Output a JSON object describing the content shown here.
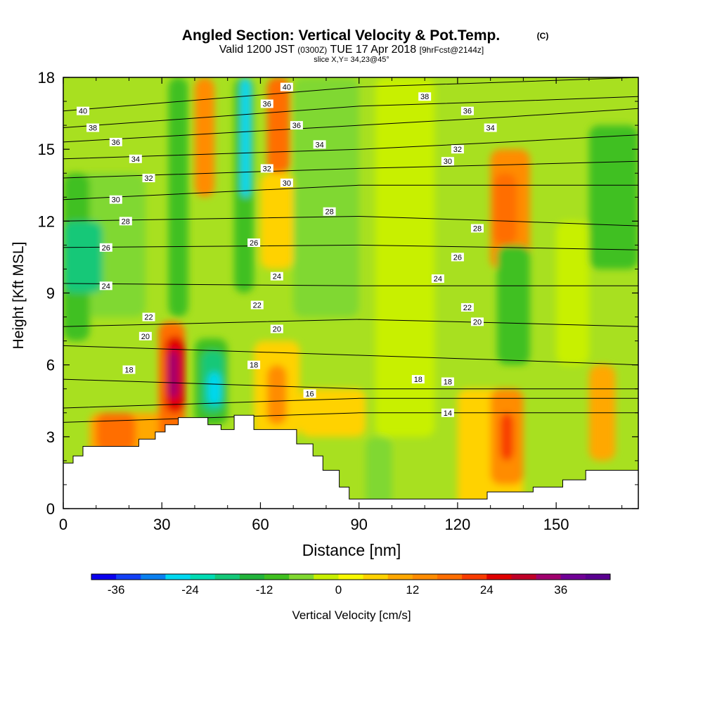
{
  "chart_data": {
    "type": "heatmap",
    "title": "Angled Section: Vertical Velocity & Pot.Temp.",
    "title_suffix": "(C)",
    "subtitle_parts": [
      "Valid 1200 JST",
      "(0300Z)",
      "TUE 17 Apr 2018",
      "[9hrFcst@2144z]"
    ],
    "subtitle2": "slice X,Y= 34,23@45°",
    "xlabel": "Distance [nm]",
    "ylabel": "Height [Kft MSL]",
    "xlim": [
      0,
      175
    ],
    "ylim": [
      0,
      18
    ],
    "x_ticks": [
      "0",
      "30",
      "60",
      "90",
      "120",
      "150"
    ],
    "y_ticks": [
      "0",
      "3",
      "6",
      "9",
      "12",
      "15",
      "18"
    ],
    "colorbar": {
      "label": "Vertical Velocity [cm/s]",
      "min": -40,
      "max": 44,
      "step": 4,
      "tick_labels": [
        "-36",
        "-24",
        "-12",
        "0",
        "12",
        "24",
        "36"
      ],
      "colors": [
        "#0a00ee",
        "#1340f5",
        "#0a80f0",
        "#00d8f0",
        "#00dcb4",
        "#14c878",
        "#22b43c",
        "#40c020",
        "#80d830",
        "#c8f000",
        "#f8f800",
        "#ffd200",
        "#ffa800",
        "#ff8c00",
        "#ff6e00",
        "#f83c00",
        "#e00000",
        "#c00028",
        "#a0006e",
        "#700096",
        "#5a0090"
      ]
    },
    "terrain": [
      [
        0,
        1.9
      ],
      [
        3,
        1.9
      ],
      [
        3,
        2.2
      ],
      [
        6,
        2.2
      ],
      [
        6,
        2.6
      ],
      [
        23,
        2.6
      ],
      [
        23,
        2.9
      ],
      [
        28,
        2.9
      ],
      [
        28,
        3.2
      ],
      [
        31,
        3.2
      ],
      [
        31,
        3.5
      ],
      [
        35,
        3.5
      ],
      [
        35,
        3.8
      ],
      [
        44,
        3.8
      ],
      [
        44,
        3.5
      ],
      [
        48,
        3.5
      ],
      [
        48,
        3.3
      ],
      [
        52,
        3.3
      ],
      [
        52,
        3.9
      ],
      [
        58,
        3.9
      ],
      [
        58,
        3.3
      ],
      [
        71,
        3.3
      ],
      [
        71,
        2.7
      ],
      [
        76,
        2.7
      ],
      [
        76,
        2.2
      ],
      [
        79,
        2.2
      ],
      [
        79,
        1.6
      ],
      [
        84,
        1.6
      ],
      [
        84,
        0.9
      ],
      [
        87,
        0.9
      ],
      [
        87,
        0.4
      ],
      [
        129,
        0.4
      ],
      [
        129,
        0.7
      ],
      [
        143,
        0.7
      ],
      [
        143,
        0.9
      ],
      [
        152,
        0.9
      ],
      [
        152,
        1.2
      ],
      [
        159,
        1.2
      ],
      [
        159,
        1.6
      ],
      [
        175,
        1.6
      ]
    ],
    "cells": [
      {
        "x": 8,
        "y": 0,
        "w": 23,
        "h": 4,
        "v": 8
      },
      {
        "x": 29,
        "y": 2.8,
        "w": 8,
        "h": 5,
        "v": 16
      },
      {
        "x": 31,
        "y": 4.0,
        "w": 6,
        "h": 3.2,
        "v": 24
      },
      {
        "x": 32,
        "y": 4.6,
        "w": 3,
        "h": 2,
        "v": 32
      },
      {
        "x": 10,
        "y": 2.4,
        "w": 12,
        "h": 1.6,
        "v": 18
      },
      {
        "x": 40,
        "y": 3.5,
        "w": 10,
        "h": 3.6,
        "v": -10
      },
      {
        "x": 42,
        "y": 4.0,
        "w": 7,
        "h": 2.6,
        "v": -20
      },
      {
        "x": 44,
        "y": 4.3,
        "w": 4,
        "h": 1.4,
        "v": -28
      },
      {
        "x": 58,
        "y": 3,
        "w": 14,
        "h": 4,
        "v": 6
      },
      {
        "x": 62,
        "y": 3.5,
        "w": 6,
        "h": 2.5,
        "v": 14
      },
      {
        "x": 72,
        "y": 3,
        "w": 20,
        "h": 2,
        "v": 4
      },
      {
        "x": 5,
        "y": 8,
        "w": 20,
        "h": 6,
        "v": -8
      },
      {
        "x": 0,
        "y": 7,
        "w": 8,
        "h": 7,
        "v": -12
      },
      {
        "x": 0,
        "y": 9,
        "w": 12,
        "h": 3,
        "v": -20
      },
      {
        "x": 33,
        "y": 11,
        "w": 4,
        "h": 7,
        "v": -24
      },
      {
        "x": 32,
        "y": 8,
        "w": 6,
        "h": 10,
        "v": -10
      },
      {
        "x": 52,
        "y": 9,
        "w": 6,
        "h": 9,
        "v": -12
      },
      {
        "x": 54,
        "y": 13,
        "w": 3,
        "h": 5,
        "v": -26
      },
      {
        "x": 40,
        "y": 13,
        "w": 6,
        "h": 5,
        "v": 14
      },
      {
        "x": 62,
        "y": 14,
        "w": 7,
        "h": 4,
        "v": 16
      },
      {
        "x": 60,
        "y": 10,
        "w": 10,
        "h": 4,
        "v": 6
      },
      {
        "x": 70,
        "y": 8,
        "w": 20,
        "h": 10,
        "v": -6
      },
      {
        "x": 92,
        "y": 0,
        "w": 8,
        "h": 3,
        "v": -6
      },
      {
        "x": 95,
        "y": 3,
        "w": 18,
        "h": 15,
        "v": -4
      },
      {
        "x": 120,
        "y": 0,
        "w": 20,
        "h": 5,
        "v": 6
      },
      {
        "x": 130,
        "y": 10,
        "w": 12,
        "h": 5,
        "v": 12
      },
      {
        "x": 131,
        "y": 11,
        "w": 7,
        "h": 3,
        "v": 18
      },
      {
        "x": 130,
        "y": 1,
        "w": 10,
        "h": 4,
        "v": 14
      },
      {
        "x": 133,
        "y": 2,
        "w": 4,
        "h": 2,
        "v": 20
      },
      {
        "x": 132,
        "y": 6,
        "w": 10,
        "h": 5,
        "v": -10
      },
      {
        "x": 160,
        "y": 10,
        "w": 15,
        "h": 6,
        "v": -12
      },
      {
        "x": 150,
        "y": 6,
        "w": 10,
        "h": 6,
        "v": -4
      },
      {
        "x": 160,
        "y": 2,
        "w": 8,
        "h": 4,
        "v": 8
      }
    ],
    "isentropes": [
      {
        "label": "14",
        "y0": 3.6,
        "y1": 4.0,
        "y2": 4.0,
        "lx": 117,
        "ly": 4.0
      },
      {
        "label": "16",
        "y0": 4.2,
        "y1": 4.6,
        "y2": 4.6,
        "lx": 75,
        "ly": 4.8
      },
      {
        "label": "18",
        "y0": 5.4,
        "y1": 5.0,
        "y2": 5.0,
        "lx": 20,
        "ly": 5.8
      },
      {
        "label": "18",
        "y0": 5.4,
        "y1": 5.0,
        "y2": 5.0,
        "lx": 58,
        "ly": 6.0
      },
      {
        "label": "18",
        "y0": 5.4,
        "y1": 5.0,
        "y2": 5.0,
        "lx": 108,
        "ly": 5.4
      },
      {
        "label": "18",
        "y0": 5.4,
        "y1": 5.0,
        "y2": 5.0,
        "lx": 117,
        "ly": 5.3
      },
      {
        "label": "20",
        "y0": 6.8,
        "y1": 6.4,
        "y2": 6.0,
        "lx": 25,
        "ly": 7.2
      },
      {
        "label": "20",
        "y0": 6.8,
        "y1": 6.4,
        "y2": 6.0,
        "lx": 65,
        "ly": 7.5
      },
      {
        "label": "20",
        "y0": 6.8,
        "y1": 6.4,
        "y2": 6.0,
        "lx": 126,
        "ly": 7.8
      },
      {
        "label": "22",
        "y0": 7.6,
        "y1": 7.9,
        "y2": 7.6,
        "lx": 26,
        "ly": 8.0
      },
      {
        "label": "22",
        "y0": 7.6,
        "y1": 7.9,
        "y2": 7.6,
        "lx": 59,
        "ly": 8.5
      },
      {
        "label": "22",
        "y0": 7.6,
        "y1": 7.9,
        "y2": 7.6,
        "lx": 123,
        "ly": 8.4
      },
      {
        "label": "24",
        "y0": 9.4,
        "y1": 9.3,
        "y2": 9.3,
        "lx": 13,
        "ly": 9.3
      },
      {
        "label": "24",
        "y0": 9.4,
        "y1": 9.3,
        "y2": 9.3,
        "lx": 65,
        "ly": 9.7
      },
      {
        "label": "24",
        "y0": 9.4,
        "y1": 9.3,
        "y2": 9.3,
        "lx": 114,
        "ly": 9.6
      },
      {
        "label": "26",
        "y0": 10.9,
        "y1": 11.0,
        "y2": 10.8,
        "lx": 13,
        "ly": 10.9
      },
      {
        "label": "26",
        "y0": 10.9,
        "y1": 11.0,
        "y2": 10.8,
        "lx": 58,
        "ly": 11.1
      },
      {
        "label": "26",
        "y0": 10.9,
        "y1": 11.0,
        "y2": 10.8,
        "lx": 120,
        "ly": 10.5
      },
      {
        "label": "28",
        "y0": 12.0,
        "y1": 12.2,
        "y2": 11.8,
        "lx": 19,
        "ly": 12.0
      },
      {
        "label": "28",
        "y0": 12.0,
        "y1": 12.2,
        "y2": 11.8,
        "lx": 81,
        "ly": 12.4
      },
      {
        "label": "28",
        "y0": 12.0,
        "y1": 12.2,
        "y2": 11.8,
        "lx": 126,
        "ly": 11.7
      },
      {
        "label": "30",
        "y0": 12.9,
        "y1": 13.5,
        "y2": 13.5,
        "lx": 16,
        "ly": 12.9
      },
      {
        "label": "30",
        "y0": 12.9,
        "y1": 13.5,
        "y2": 13.5,
        "lx": 68,
        "ly": 13.6
      },
      {
        "label": "30",
        "y0": 12.9,
        "y1": 13.5,
        "y2": 13.5,
        "lx": 117,
        "ly": 14.5
      },
      {
        "label": "32",
        "y0": 13.8,
        "y1": 14.2,
        "y2": 14.5,
        "lx": 26,
        "ly": 13.8
      },
      {
        "label": "32",
        "y0": 13.8,
        "y1": 14.2,
        "y2": 14.5,
        "lx": 62,
        "ly": 14.2
      },
      {
        "label": "32",
        "y0": 13.8,
        "y1": 14.2,
        "y2": 14.5,
        "lx": 120,
        "ly": 15.0
      },
      {
        "label": "34",
        "y0": 14.6,
        "y1": 15.0,
        "y2": 15.6,
        "lx": 22,
        "ly": 14.6
      },
      {
        "label": "34",
        "y0": 14.6,
        "y1": 15.0,
        "y2": 15.6,
        "lx": 78,
        "ly": 15.2
      },
      {
        "label": "34",
        "y0": 14.6,
        "y1": 15.0,
        "y2": 15.6,
        "lx": 130,
        "ly": 15.9
      },
      {
        "label": "36",
        "y0": 15.3,
        "y1": 16.0,
        "y2": 16.7,
        "lx": 16,
        "ly": 15.3
      },
      {
        "label": "36",
        "y0": 15.3,
        "y1": 16.0,
        "y2": 16.7,
        "lx": 71,
        "ly": 16.0
      },
      {
        "label": "36",
        "y0": 15.3,
        "y1": 16.0,
        "y2": 16.7,
        "lx": 62,
        "ly": 16.9
      },
      {
        "label": "36",
        "y0": 15.3,
        "y1": 16.0,
        "y2": 16.7,
        "lx": 123,
        "ly": 16.6
      },
      {
        "label": "38",
        "y0": 15.9,
        "y1": 16.8,
        "y2": 17.2,
        "lx": 9,
        "ly": 15.9
      },
      {
        "label": "38",
        "y0": 15.9,
        "y1": 16.8,
        "y2": 17.2,
        "lx": 110,
        "ly": 17.2
      },
      {
        "label": "40",
        "y0": 16.6,
        "y1": 17.6,
        "y2": 18.0,
        "lx": 6,
        "ly": 16.6
      },
      {
        "label": "40",
        "y0": 16.6,
        "y1": 17.6,
        "y2": 18.0,
        "lx": 68,
        "ly": 17.6
      }
    ]
  }
}
